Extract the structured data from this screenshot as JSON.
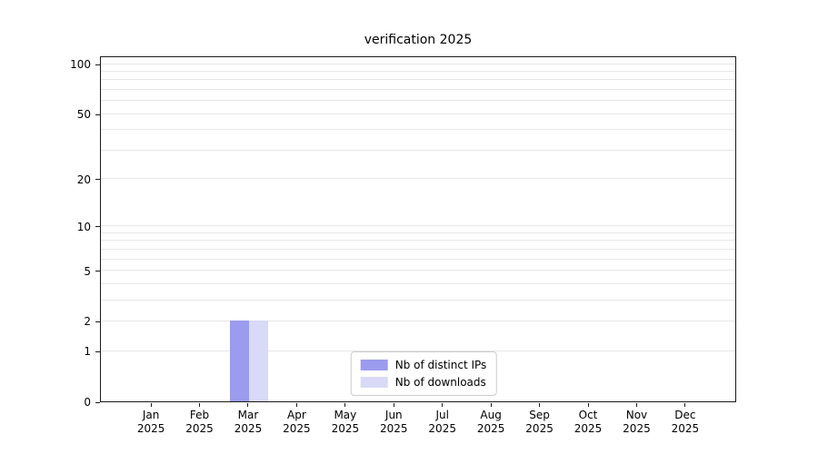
{
  "chart_data": {
    "type": "bar",
    "title": "verification 2025",
    "categories": [
      "Jan",
      "Feb",
      "Mar",
      "Apr",
      "May",
      "Jun",
      "Jul",
      "Aug",
      "Sep",
      "Oct",
      "Nov",
      "Dec"
    ],
    "x_year": "2025",
    "series": [
      {
        "name": "Nb of distinct IPs",
        "color": "#9b9bef",
        "values": [
          0,
          0,
          2,
          0,
          0,
          0,
          0,
          0,
          0,
          0,
          0,
          0
        ]
      },
      {
        "name": "Nb of downloads",
        "color": "#d9d9f8",
        "values": [
          0,
          0,
          2,
          0,
          0,
          0,
          0,
          0,
          0,
          0,
          0,
          0
        ]
      }
    ],
    "y_ticks": [
      0,
      1,
      2,
      5,
      10,
      20,
      50,
      100
    ],
    "grid_values": [
      1,
      2,
      3,
      4,
      5,
      6,
      7,
      8,
      9,
      10,
      20,
      30,
      40,
      50,
      60,
      70,
      80,
      90,
      100
    ],
    "scale": "log1p",
    "y_max": 112,
    "ylim": [
      0,
      112
    ],
    "grid": "on",
    "legend_position": "lower center"
  }
}
